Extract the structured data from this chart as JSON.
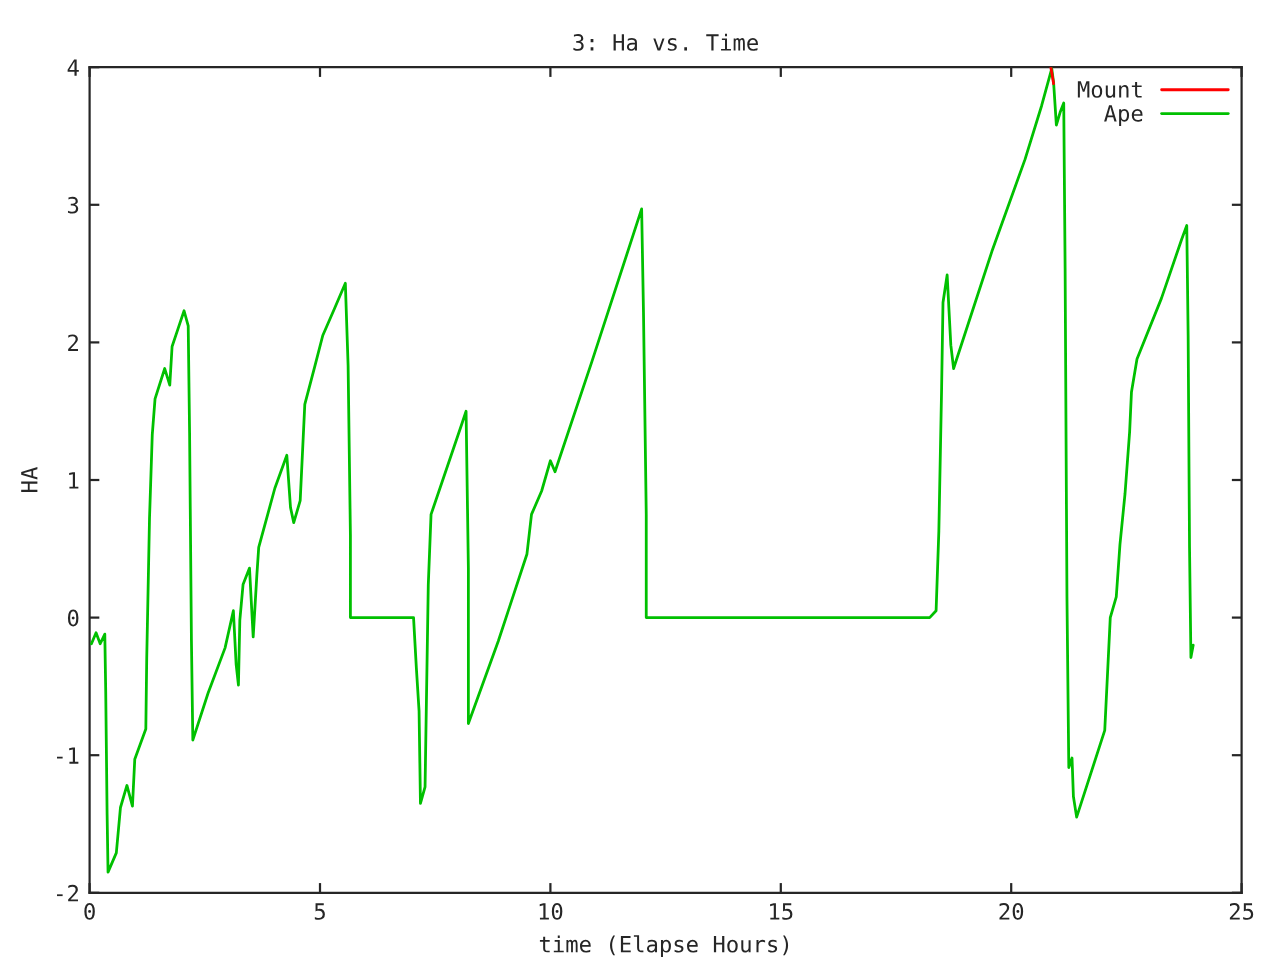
{
  "chart_data": {
    "type": "line",
    "title": "3: Ha vs. Time",
    "xlabel": "time (Elapse Hours)",
    "ylabel": "HA",
    "xlim": [
      0,
      25
    ],
    "xticks": [
      0,
      5,
      10,
      15,
      20,
      25
    ],
    "ylim": [
      -2,
      4
    ],
    "yticks": [
      -2,
      -1,
      0,
      1,
      2,
      3,
      4
    ],
    "grid": false,
    "legend": "top right",
    "marker": "none",
    "line_style": "solid",
    "series": [
      {
        "name": "Mount",
        "color": "#ff0000",
        "x": [
          20.86,
          20.92
        ],
        "values": [
          4.0,
          3.88
        ]
      },
      {
        "name": "Ape",
        "color": "#00c000",
        "x": [
          0.04,
          0.14,
          0.23,
          0.33,
          0.35,
          0.38,
          0.4,
          0.58,
          0.67,
          0.81,
          0.93,
          0.98,
          1.22,
          1.24,
          1.3,
          1.36,
          1.42,
          1.63,
          1.74,
          1.79,
          1.92,
          2.05,
          2.14,
          2.17,
          2.21,
          2.24,
          2.57,
          2.94,
          3.12,
          3.18,
          3.23,
          3.26,
          3.33,
          3.47,
          3.55,
          3.63,
          3.67,
          4.02,
          4.28,
          4.36,
          4.43,
          4.57,
          4.67,
          4.89,
          5.06,
          5.32,
          5.55,
          5.61,
          5.66,
          5.66,
          7.03,
          7.09,
          7.15,
          7.18,
          7.28,
          7.35,
          7.41,
          8.07,
          8.17,
          8.22,
          8.22,
          8.87,
          9.49,
          9.59,
          9.81,
          10.0,
          10.1,
          10.9,
          11.98,
          12.02,
          12.08,
          12.08,
          18.23,
          18.37,
          18.43,
          18.49,
          18.52,
          18.61,
          18.69,
          18.75,
          19.58,
          20.3,
          20.66,
          20.88,
          20.92,
          20.98,
          21.06,
          21.14,
          21.17,
          21.21,
          21.25,
          21.32,
          21.35,
          21.42,
          22.03,
          22.15,
          22.28,
          22.36,
          22.47,
          22.57,
          22.61,
          22.73,
          23.26,
          23.7,
          23.81,
          23.84,
          23.87,
          23.9,
          23.95
        ],
        "values": [
          -0.19,
          -0.11,
          -0.19,
          -0.12,
          -0.54,
          -1.43,
          -1.85,
          -1.71,
          -1.38,
          -1.22,
          -1.37,
          -1.03,
          -0.81,
          -0.29,
          0.72,
          1.33,
          1.59,
          1.81,
          1.69,
          1.97,
          2.1,
          2.23,
          2.12,
          1.34,
          -0.17,
          -0.89,
          -0.55,
          -0.22,
          0.05,
          -0.34,
          -0.49,
          -0.02,
          0.24,
          0.36,
          -0.14,
          0.31,
          0.51,
          0.94,
          1.18,
          0.8,
          0.69,
          0.85,
          1.55,
          1.83,
          2.05,
          2.25,
          2.43,
          1.83,
          0.6,
          0.0,
          0.0,
          -0.36,
          -0.68,
          -1.35,
          -1.23,
          0.24,
          0.75,
          1.4,
          1.5,
          0.36,
          -0.77,
          -0.17,
          0.46,
          0.75,
          0.92,
          1.14,
          1.06,
          1.86,
          2.97,
          2.22,
          0.75,
          0.0,
          0.0,
          0.05,
          0.63,
          1.67,
          2.29,
          2.49,
          1.98,
          1.81,
          2.66,
          3.33,
          3.72,
          3.99,
          3.89,
          3.58,
          3.67,
          3.74,
          2.54,
          0.15,
          -1.09,
          -1.02,
          -1.3,
          -1.45,
          -0.82,
          0.0,
          0.15,
          0.53,
          0.9,
          1.35,
          1.64,
          1.88,
          2.32,
          2.75,
          2.85,
          2.05,
          0.51,
          -0.29,
          -0.2
        ]
      }
    ]
  }
}
